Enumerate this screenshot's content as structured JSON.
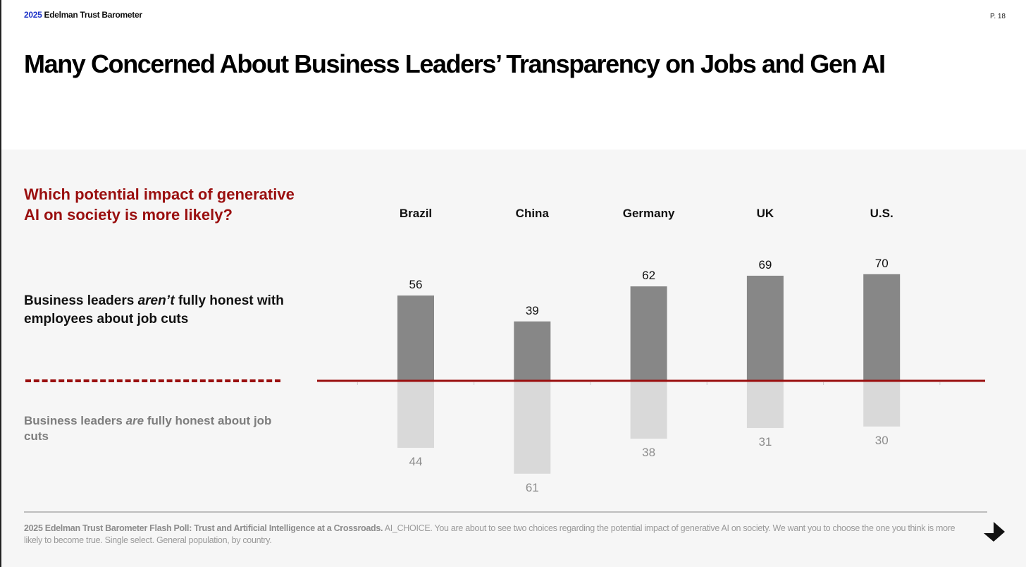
{
  "header": {
    "brand_year": "2025",
    "brand_name": "Edelman Trust Barometer",
    "page_number": "P. 18",
    "title": "Many Concerned About Business Leaders’ Transparency on Jobs and Gen AI"
  },
  "sidebar": {
    "question": "Which potential impact of generative AI on society is more likely?",
    "legend_top": {
      "before": "Business leaders ",
      "emph": "aren’t",
      "after": " fully honest with employees about job cuts"
    },
    "legend_bottom": {
      "before": "Business leaders ",
      "emph": "are",
      "after": " fully honest about job cuts"
    }
  },
  "colors": {
    "brand_blue": "#1f35c8",
    "accent_red": "#9a0f0f",
    "bar_top": "#878787",
    "bar_bottom": "#d9d9d9",
    "baseline": "#9a0f0f"
  },
  "chart_data": {
    "type": "bar",
    "title": "Which potential impact of generative AI on society is more likely?",
    "categories": [
      "Brazil",
      "China",
      "Germany",
      "UK",
      "U.S."
    ],
    "series": [
      {
        "name": "Business leaders aren’t fully honest with employees about job cuts",
        "direction": "up",
        "values": [
          56,
          39,
          62,
          69,
          70
        ]
      },
      {
        "name": "Business leaders are fully honest about job cuts",
        "direction": "down",
        "values": [
          44,
          61,
          38,
          31,
          30
        ]
      }
    ],
    "xlabel": "",
    "ylabel": "",
    "unit": "percent",
    "grid": false,
    "legend": "left"
  },
  "footer": {
    "source_bold": "2025 Edelman Trust Barometer Flash Poll: Trust and Artificial Intelligence at a Crossroads.",
    "source_text": " AI_CHOICE. You are about to see two choices regarding the potential impact of generative AI on society. We want you to choose the one you think is more likely to become true. Single select. General population, by country.",
    "next_icon": "arrow-down-right-icon"
  }
}
